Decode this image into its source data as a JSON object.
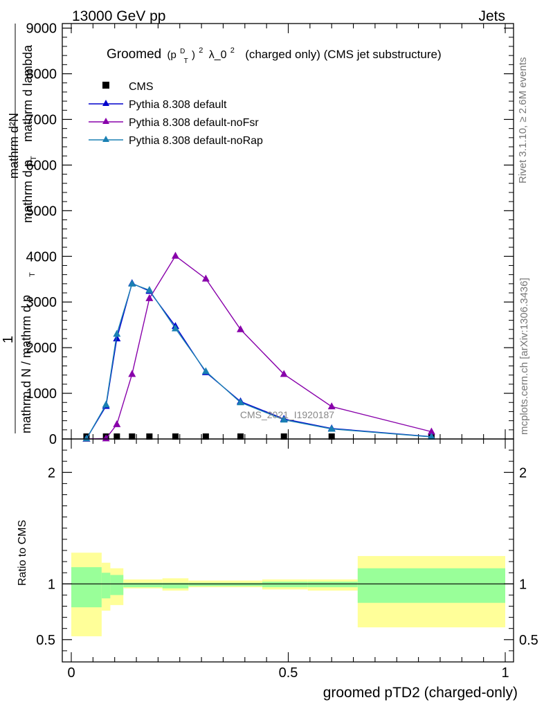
{
  "header": {
    "left": "13000 GeV pp",
    "right": "Jets"
  },
  "side_labels": {
    "rivet": "Rivet 3.1.10, ≥ 2.6M events",
    "mcplots": "mcplots.cern.ch [arXiv:1306.3436]"
  },
  "watermark": "CMS_2021_I1920187",
  "colors": {
    "cms": "#000000",
    "default": "#0000cc",
    "noFsr": "#8800aa",
    "noRap": "#1a80b3",
    "band_inner": "#99ff99",
    "band_outer": "#ffff99"
  },
  "chart_data": [
    {
      "type": "line",
      "title": {
        "main": "Groomed",
        "formula_p": "(p",
        "formula_sup_d": "D",
        "formula_sub_t": "T",
        "formula_close": ")",
        "formula_sup_2": "2",
        "formula_rest": "λ_0",
        "formula_sup_2b": "2",
        "suffix": "(charged only) (CMS jet substructure)"
      },
      "ylabel": {
        "top": "mathrm d²N",
        "top_sub": "T",
        "bottom_upper": "mathrm d p",
        "bottom_lower": "mathrm d lambda",
        "frac_one": "1",
        "frac_den": "mathrm d N / mathrm d p",
        "frac_den_sub": "T"
      },
      "xlim": [
        0,
        1
      ],
      "ylim": [
        0,
        9100
      ],
      "ytick_values": [
        0,
        1000,
        2000,
        3000,
        4000,
        5000,
        6000,
        7000,
        8000,
        9000
      ],
      "ytick_labels": [
        "0",
        "1000",
        "2000",
        "3000",
        "4000",
        "5000",
        "6000",
        "7000",
        "8000",
        "9000"
      ],
      "legend_position": "top-left",
      "legend": [
        "CMS",
        "Pythia 8.308 default",
        "Pythia 8.308 default-noFsr",
        "Pythia 8.308 default-noRap"
      ],
      "x": [
        0.035,
        0.08,
        0.105,
        0.14,
        0.18,
        0.24,
        0.31,
        0.39,
        0.49,
        0.6,
        0.83
      ],
      "series": [
        {
          "name": "CMS",
          "marker": "square",
          "values": [
            0,
            0,
            0,
            0,
            0,
            0,
            0,
            0,
            0,
            0,
            0
          ]
        },
        {
          "name": "Pythia 8.308 default",
          "marker": "triangle",
          "values": [
            5,
            720,
            2200,
            3410,
            3240,
            2470,
            1460,
            820,
            440,
            230,
            50
          ]
        },
        {
          "name": "Pythia 8.308 default-noFsr",
          "marker": "triangle",
          "values": [
            0,
            10,
            320,
            1420,
            3080,
            4010,
            3510,
            2400,
            1420,
            710,
            160
          ]
        },
        {
          "name": "Pythia 8.308 default-noRap",
          "marker": "triangle",
          "values": [
            5,
            750,
            2300,
            3400,
            3260,
            2420,
            1480,
            800,
            420,
            220,
            45
          ]
        }
      ]
    },
    {
      "type": "area",
      "ylabel": "Ratio to CMS",
      "xlabel": "groomed pTD2 (charged-only)",
      "xlim": [
        0,
        1
      ],
      "ylim": [
        0.3,
        2.3
      ],
      "xtick_values": [
        0,
        0.5,
        1
      ],
      "xtick_labels": [
        "0",
        "0.5",
        "1"
      ],
      "ytick_values": [
        0.5,
        1,
        2
      ],
      "ytick_labels": [
        "0.5",
        "1",
        "2"
      ],
      "reference_line": 1,
      "bands": [
        {
          "x0": 0.0,
          "x1": 0.07,
          "inner": [
            0.79,
            1.15
          ],
          "outer": [
            0.53,
            1.28
          ]
        },
        {
          "x0": 0.07,
          "x1": 0.09,
          "inner": [
            0.87,
            1.1
          ],
          "outer": [
            0.76,
            1.19
          ]
        },
        {
          "x0": 0.09,
          "x1": 0.12,
          "inner": [
            0.9,
            1.08
          ],
          "outer": [
            0.81,
            1.14
          ]
        },
        {
          "x0": 0.12,
          "x1": 0.21,
          "inner": [
            0.97,
            1.01
          ],
          "outer": [
            0.96,
            1.04
          ]
        },
        {
          "x0": 0.21,
          "x1": 0.27,
          "inner": [
            0.96,
            1.01
          ],
          "outer": [
            0.94,
            1.05
          ]
        },
        {
          "x0": 0.27,
          "x1": 0.44,
          "inner": [
            0.98,
            1.01
          ],
          "outer": [
            0.97,
            1.03
          ]
        },
        {
          "x0": 0.44,
          "x1": 0.545,
          "inner": [
            0.97,
            1.02
          ],
          "outer": [
            0.95,
            1.04
          ]
        },
        {
          "x0": 0.545,
          "x1": 0.66,
          "inner": [
            0.97,
            1.02
          ],
          "outer": [
            0.94,
            1.04
          ]
        },
        {
          "x0": 0.66,
          "x1": 1.0,
          "inner": [
            0.83,
            1.14
          ],
          "outer": [
            0.61,
            1.25
          ]
        }
      ]
    }
  ]
}
